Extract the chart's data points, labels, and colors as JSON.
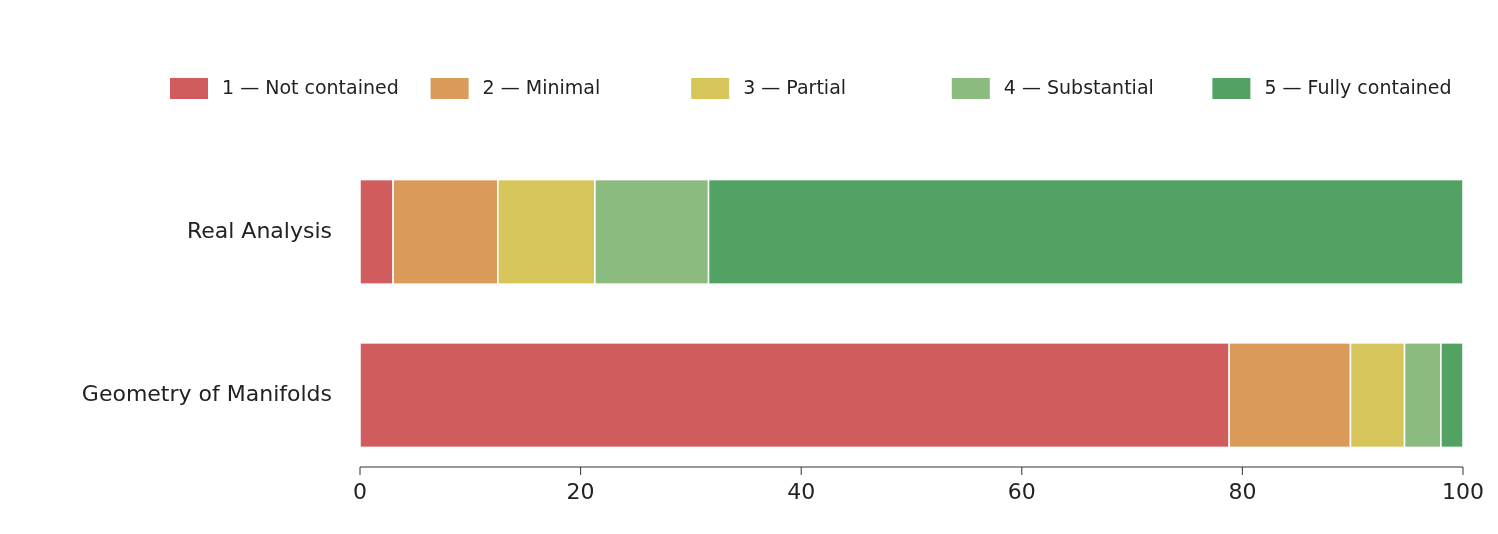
{
  "chart_data": {
    "type": "bar",
    "orientation": "horizontal",
    "stacked": true,
    "categories": [
      "Real Analysis",
      "Geometry of Manifolds"
    ],
    "series": [
      {
        "name": "1 — Not contained",
        "color": "#d05c5e",
        "values": [
          3,
          78.8
        ]
      },
      {
        "name": "2 — Minimal",
        "color": "#d99a5a",
        "values": [
          9.5,
          11
        ]
      },
      {
        "name": "3 — Partial",
        "color": "#d6c55a",
        "values": [
          8.8,
          4.9
        ]
      },
      {
        "name": "4 — Substantial",
        "color": "#8cbb80",
        "values": [
          10.3,
          3.3
        ]
      },
      {
        "name": "5 — Fully contained",
        "color": "#52a264",
        "values": [
          68.4,
          2
        ]
      }
    ],
    "xlim": [
      0,
      100
    ],
    "xticks": [
      0,
      20,
      40,
      60,
      80,
      100
    ],
    "legend": "top",
    "grid": false
  }
}
